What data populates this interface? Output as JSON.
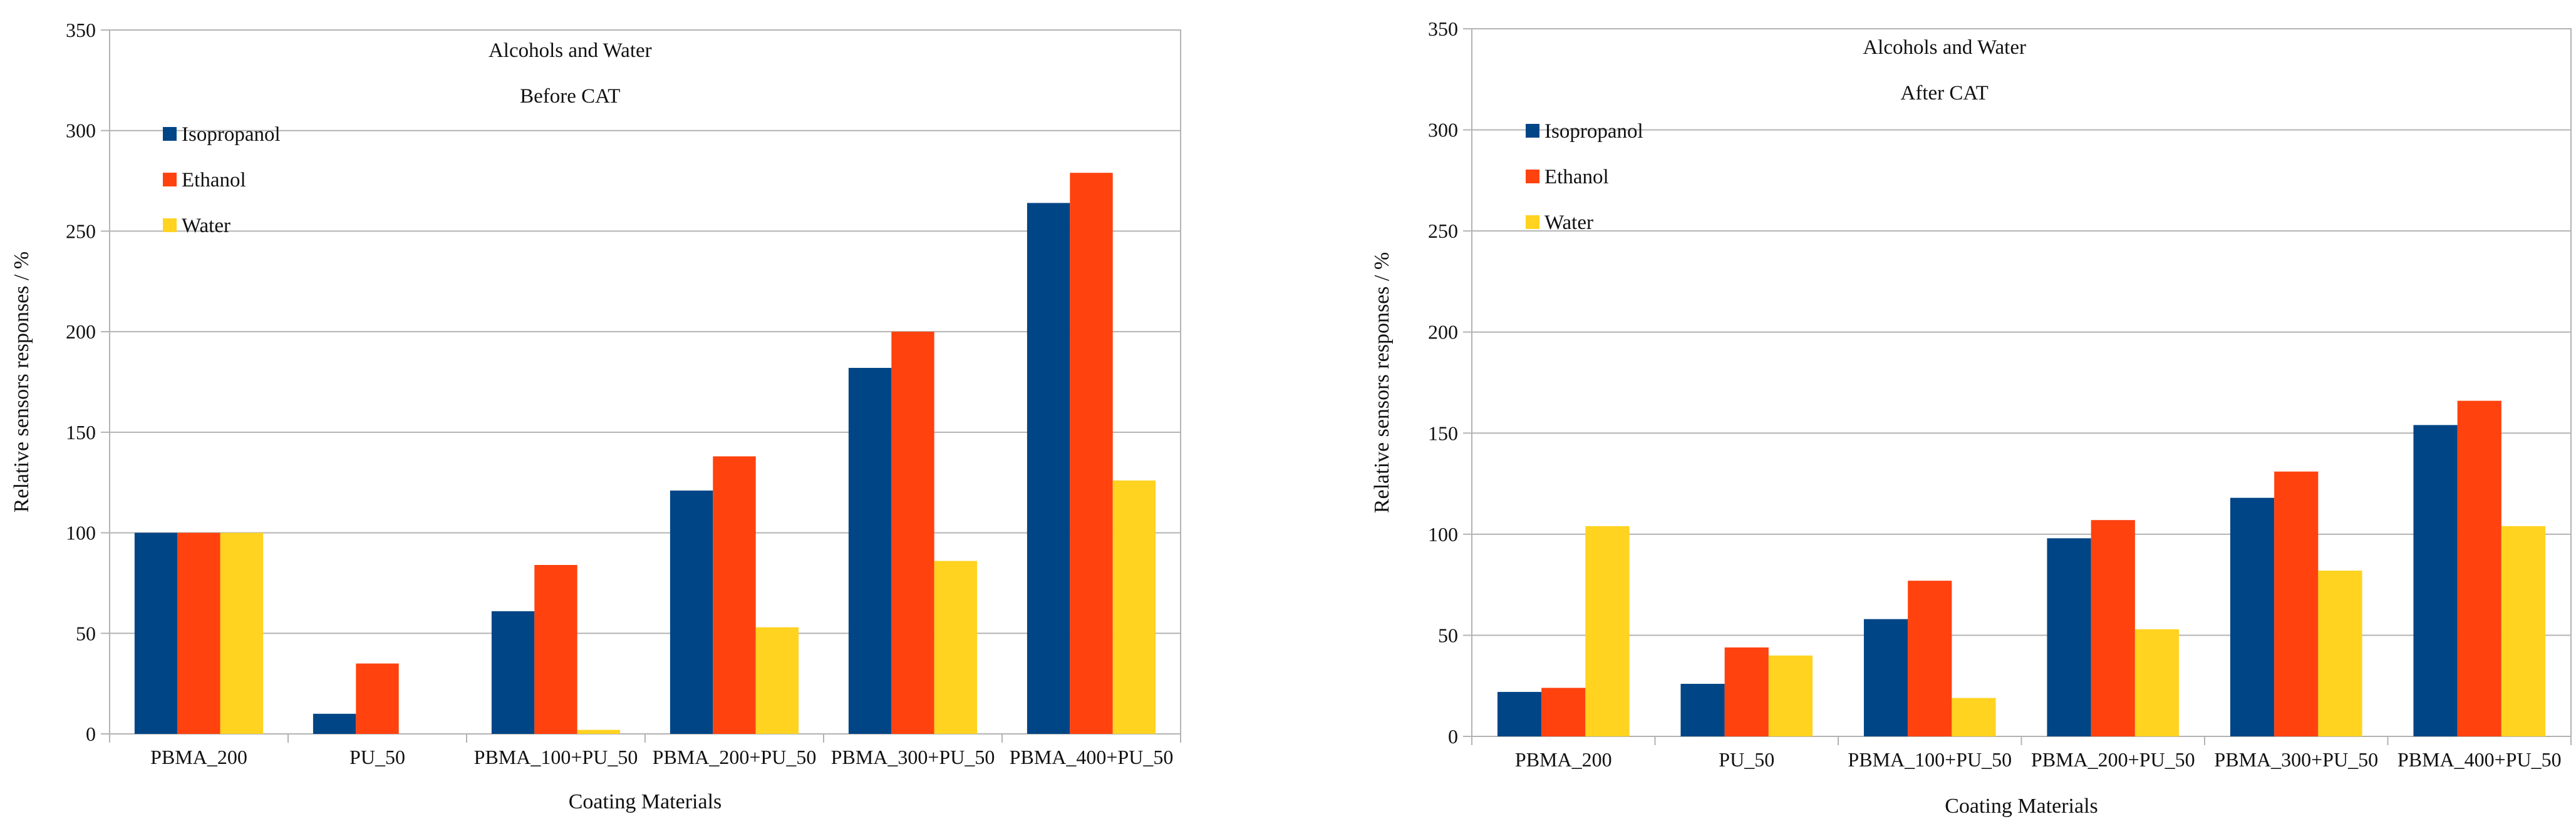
{
  "chart_data": [
    {
      "type": "bar",
      "title": "Alcohols and Water",
      "subtitle": "Before CAT",
      "xlabel": "Coating Materials",
      "ylabel": "Relative sensors responses / %",
      "ylim": [
        0,
        350
      ],
      "yticks": [
        0,
        50,
        100,
        150,
        200,
        250,
        300,
        350
      ],
      "grid": true,
      "legend_position": "top-left",
      "categories": [
        "PBMA_200",
        "PU_50",
        "PBMA_100+PU_50",
        "PBMA_200+PU_50",
        "PBMA_300+PU_50",
        "PBMA_400+PU_50"
      ],
      "series": [
        {
          "name": "Isopropanol",
          "color": "#004586",
          "values": [
            100,
            10,
            61,
            121,
            182,
            264
          ]
        },
        {
          "name": "Ethanol",
          "color": "#ff420e",
          "values": [
            100,
            35,
            84,
            138,
            200,
            279
          ]
        },
        {
          "name": "Water",
          "color": "#ffd320",
          "values": [
            100,
            0,
            2,
            53,
            86,
            126
          ]
        }
      ]
    },
    {
      "type": "bar",
      "title": "Alcohols and Water",
      "subtitle": "After CAT",
      "xlabel": "Coating Materials",
      "ylabel": "Relative sensors responses / %",
      "ylim": [
        0,
        350
      ],
      "yticks": [
        0,
        50,
        100,
        150,
        200,
        250,
        300,
        350
      ],
      "grid": true,
      "legend_position": "top-left",
      "categories": [
        "PBMA_200",
        "PU_50",
        "PBMA_100+PU_50",
        "PBMA_200+PU_50",
        "PBMA_300+PU_50",
        "PBMA_400+PU_50"
      ],
      "series": [
        {
          "name": "Isopropanol",
          "color": "#004586",
          "values": [
            22,
            26,
            58,
            98,
            118,
            154
          ]
        },
        {
          "name": "Ethanol",
          "color": "#ff420e",
          "values": [
            24,
            44,
            77,
            107,
            131,
            166
          ]
        },
        {
          "name": "Water",
          "color": "#ffd320",
          "values": [
            104,
            40,
            19,
            53,
            82,
            104
          ]
        }
      ]
    }
  ]
}
